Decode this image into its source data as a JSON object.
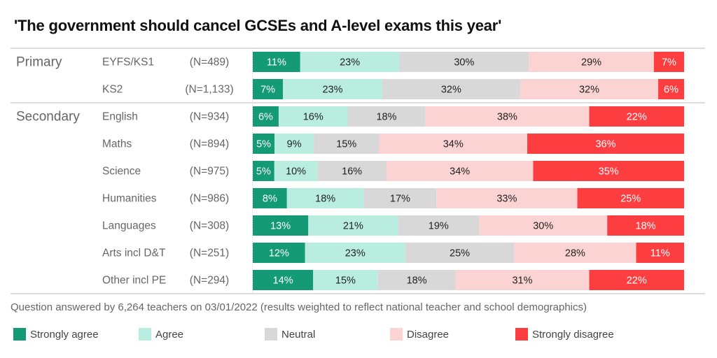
{
  "chart_data": {
    "type": "bar",
    "orientation": "horizontal-stacked-100",
    "title": "'The government should cancel GCSEs and A-level exams this year'",
    "xlabel": "",
    "ylabel": "",
    "xlim": [
      0,
      100
    ],
    "grid": false,
    "legend_position": "bottom",
    "groups": [
      {
        "name": "Primary",
        "start": 0,
        "count": 2
      },
      {
        "name": "Secondary",
        "start": 2,
        "count": 7
      }
    ],
    "categories": [
      "EYFS/KS1",
      "KS2",
      "English",
      "Maths",
      "Science",
      "Humanities",
      "Languages",
      "Arts incl D&T",
      "Other incl PE"
    ],
    "n_labels": [
      "(N=489)",
      "(N=1,133)",
      "(N=934)",
      "(N=894)",
      "(N=975)",
      "(N=986)",
      "(N=308)",
      "(N=251)",
      "(N=294)"
    ],
    "series": [
      {
        "name": "Strongly agree",
        "color": "#149a74",
        "text_color": "#ffffff",
        "values": [
          11,
          7,
          6,
          5,
          5,
          8,
          13,
          12,
          14
        ],
        "value_labels": [
          "11%",
          "7%",
          "6%",
          "5%",
          "5%",
          "8%",
          "13%",
          "12%",
          "14%"
        ]
      },
      {
        "name": "Agree",
        "color": "#b9ede0",
        "text_color": "#222222",
        "values": [
          23,
          23,
          16,
          9,
          10,
          18,
          21,
          23,
          15
        ],
        "value_labels": [
          "23%",
          "23%",
          "16%",
          "9%",
          "10%",
          "18%",
          "21%",
          "23%",
          "15%"
        ]
      },
      {
        "name": "Neutral",
        "color": "#d8d8d8",
        "text_color": "#222222",
        "values": [
          30,
          32,
          18,
          15,
          16,
          17,
          19,
          25,
          18
        ],
        "value_labels": [
          "30%",
          "32%",
          "18%",
          "15%",
          "16%",
          "17%",
          "19%",
          "25%",
          "18%"
        ]
      },
      {
        "name": "Disagree",
        "color": "#fbd3d2",
        "text_color": "#222222",
        "values": [
          29,
          32,
          38,
          34,
          34,
          33,
          30,
          28,
          31
        ],
        "value_labels": [
          "29%",
          "32%",
          "38%",
          "34%",
          "34%",
          "33%",
          "30%",
          "28%",
          "31%"
        ]
      },
      {
        "name": "Strongly disagree",
        "color": "#fd3e41",
        "text_color": "#ffffff",
        "values": [
          7,
          6,
          22,
          36,
          35,
          25,
          18,
          11,
          22
        ],
        "value_labels": [
          "7%",
          "6%",
          "22%",
          "36%",
          "35%",
          "25%",
          "18%",
          "11%",
          "22%"
        ]
      }
    ]
  },
  "footnote": "Question answered by 6,264 teachers on 03/01/2022 (results weighted to reflect national teacher and school demographics)"
}
